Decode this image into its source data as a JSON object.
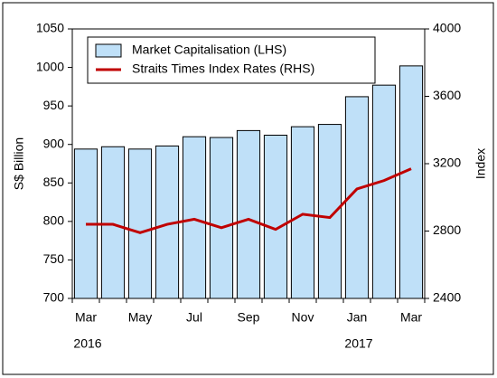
{
  "chart_data": {
    "type": "bar_line",
    "categories": [
      "Mar",
      null,
      "May",
      null,
      "Jul",
      null,
      "Sep",
      null,
      "Nov",
      null,
      "Jan",
      null,
      "Mar"
    ],
    "year_labels": [
      "2016",
      "2017"
    ],
    "ylabel": "S$ Billion",
    "y2label": "Index",
    "ylim": [
      700,
      1050
    ],
    "yticks": [
      700,
      750,
      800,
      850,
      900,
      950,
      1000,
      1050
    ],
    "y2lim": [
      2400,
      4000
    ],
    "y2ticks": [
      2400,
      2800,
      3200,
      3600,
      4000
    ],
    "legend": "top-left",
    "series": [
      {
        "name": "Market Capitalisation (LHS)",
        "color": "#bfe0f8",
        "type": "bar",
        "values": [
          894,
          897,
          894,
          898,
          910,
          909,
          918,
          912,
          923,
          926,
          962,
          977,
          1002
        ]
      },
      {
        "name": "Straits Times Index Rates (RHS)",
        "color": "#c00000",
        "type": "line",
        "axis": "y2",
        "values": [
          2840,
          2840,
          2790,
          2840,
          2870,
          2820,
          2870,
          2810,
          2900,
          2880,
          3050,
          3100,
          3170
        ]
      }
    ]
  }
}
